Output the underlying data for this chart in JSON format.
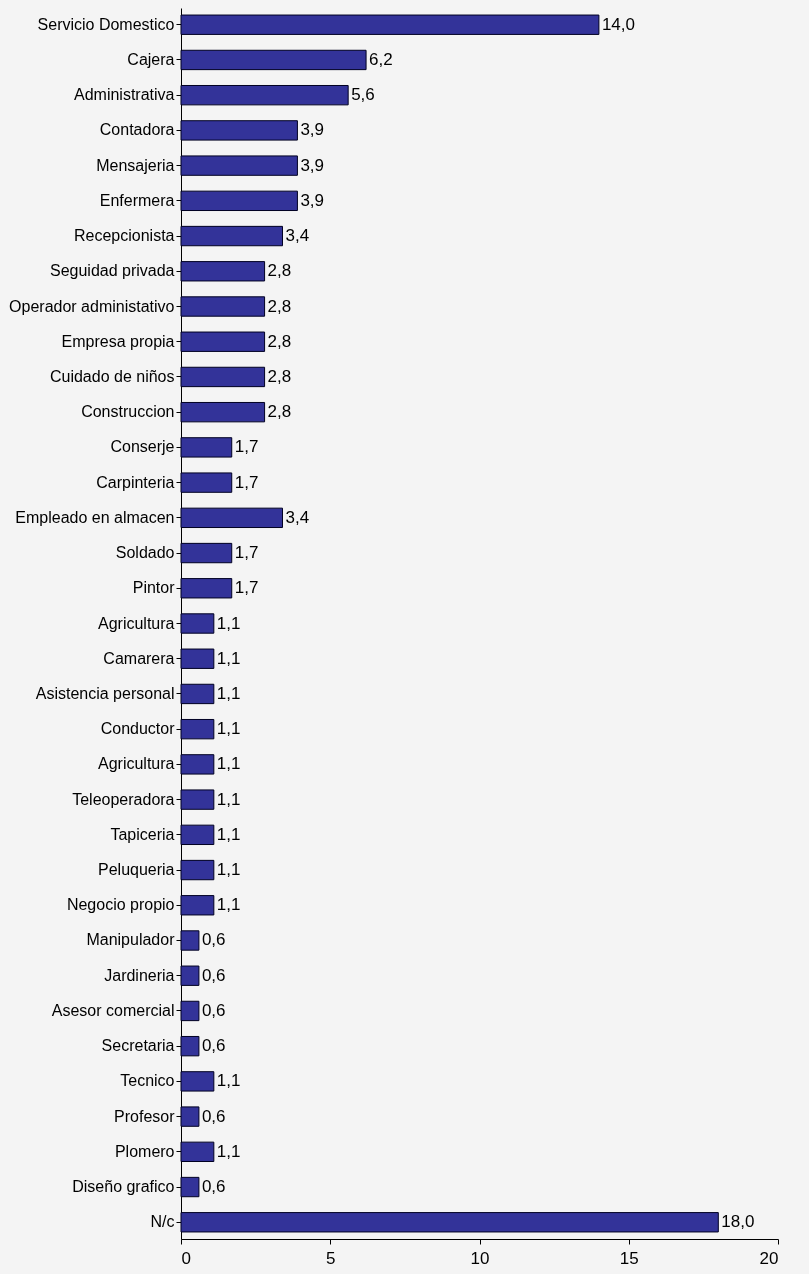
{
  "chart_data": {
    "type": "bar",
    "orientation": "horizontal",
    "categories": [
      "Servicio Domestico",
      "Cajera",
      "Administrativa",
      "Contadora",
      "Mensajeria",
      "Enfermera",
      "Recepcionista",
      "Seguidad privada",
      "Operador administativo",
      "Empresa propia",
      "Cuidado de niños",
      "Construccion",
      "Conserje",
      "Carpinteria",
      "Empleado en almacen",
      "Soldado",
      "Pintor",
      "Agricultura",
      "Camarera",
      "Asistencia personal",
      "Conductor",
      "Agricultura",
      "Teleoperadora",
      "Tapiceria",
      "Peluqueria",
      "Negocio propio",
      "Manipulador",
      "Jardineria",
      "Asesor comercial",
      "Secretaria",
      "Tecnico",
      "Profesor",
      "Plomero",
      "Diseño grafico",
      "N/c"
    ],
    "values": [
      14.0,
      6.2,
      5.6,
      3.9,
      3.9,
      3.9,
      3.4,
      2.8,
      2.8,
      2.8,
      2.8,
      2.8,
      1.7,
      1.7,
      3.4,
      1.7,
      1.7,
      1.1,
      1.1,
      1.1,
      1.1,
      1.1,
      1.1,
      1.1,
      1.1,
      1.1,
      0.6,
      0.6,
      0.6,
      0.6,
      1.1,
      0.6,
      1.1,
      0.6,
      18.0
    ],
    "value_labels": [
      "14,0",
      "6,2",
      "5,6",
      "3,9",
      "3,9",
      "3,9",
      "3,4",
      "2,8",
      "2,8",
      "2,8",
      "2,8",
      "2,8",
      "1,7",
      "1,7",
      "3,4",
      "1,7",
      "1,7",
      "1,1",
      "1,1",
      "1,1",
      "1,1",
      "1,1",
      "1,1",
      "1,1",
      "1,1",
      "1,1",
      "0,6",
      "0,6",
      "0,6",
      "0,6",
      "1,1",
      "0,6",
      "1,1",
      "0,6",
      "18,0"
    ],
    "color": "#333399",
    "xlim": [
      0,
      20
    ],
    "xticks": [
      0,
      5,
      10,
      15,
      20
    ],
    "grid": false
  }
}
